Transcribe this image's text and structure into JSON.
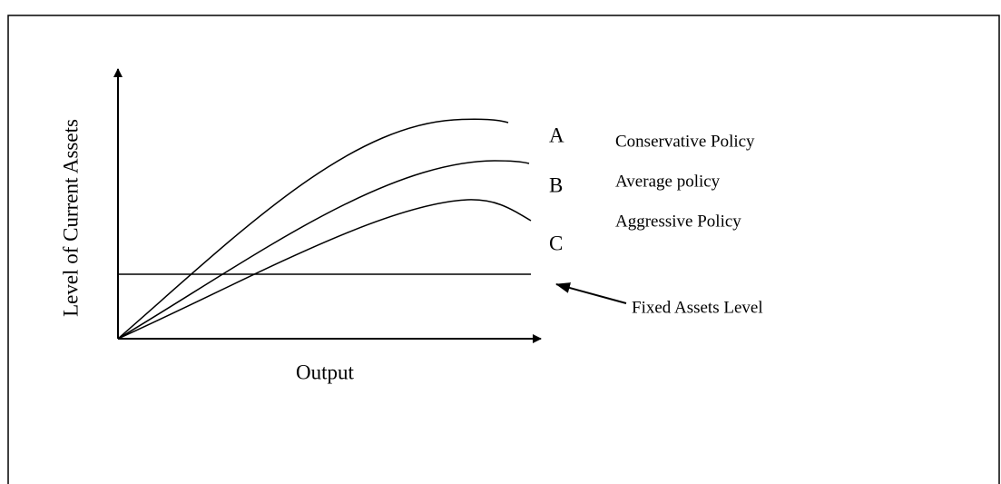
{
  "axes": {
    "y_label": "Level of Current Assets",
    "x_label": "Output"
  },
  "curves": [
    {
      "letter": "A",
      "label": "Conservative Policy"
    },
    {
      "letter": "B",
      "label": "Average policy"
    },
    {
      "letter": "C",
      "label": "Aggressive Policy"
    }
  ],
  "fixed_assets": {
    "label": "Fixed Assets Level"
  }
}
